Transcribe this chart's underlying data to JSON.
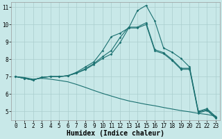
{
  "xlabel": "Humidex (Indice chaleur)",
  "bg_color": "#c8e8e8",
  "line_color": "#1a7070",
  "grid_color": "#aacece",
  "xlim_min": -0.5,
  "xlim_max": 23.5,
  "ylim_min": 4.5,
  "ylim_max": 11.3,
  "yticks": [
    5,
    6,
    7,
    8,
    9,
    10,
    11
  ],
  "xticks": [
    0,
    1,
    2,
    3,
    4,
    5,
    6,
    7,
    8,
    9,
    10,
    11,
    12,
    13,
    14,
    15,
    16,
    17,
    18,
    19,
    20,
    21,
    22,
    23
  ],
  "curve_peak": [
    7.0,
    6.9,
    6.8,
    6.95,
    7.0,
    7.0,
    7.05,
    7.25,
    7.55,
    7.85,
    8.5,
    9.3,
    9.5,
    9.8,
    10.8,
    11.1,
    10.2,
    8.65,
    8.4,
    8.05,
    7.55,
    5.0,
    5.15,
    4.7
  ],
  "curve_mid1": [
    7.0,
    6.9,
    6.8,
    6.95,
    7.0,
    7.0,
    7.05,
    7.2,
    7.45,
    7.75,
    8.15,
    8.5,
    9.25,
    9.85,
    9.85,
    10.1,
    8.55,
    8.38,
    7.98,
    7.48,
    7.48,
    4.95,
    5.1,
    4.65
  ],
  "curve_mid2": [
    7.0,
    6.9,
    6.8,
    6.95,
    7.0,
    7.0,
    7.05,
    7.2,
    7.4,
    7.7,
    8.05,
    8.3,
    8.95,
    9.8,
    9.8,
    10.0,
    8.48,
    8.32,
    7.92,
    7.42,
    7.42,
    4.9,
    5.05,
    4.6
  ],
  "curve_low": [
    7.0,
    6.95,
    6.85,
    6.9,
    6.85,
    6.78,
    6.7,
    6.55,
    6.38,
    6.2,
    6.03,
    5.88,
    5.73,
    5.6,
    5.5,
    5.4,
    5.32,
    5.22,
    5.13,
    5.04,
    4.97,
    4.88,
    4.82,
    4.72
  ],
  "tick_fontsize": 5.5,
  "xlabel_fontsize": 7,
  "lw": 0.8,
  "ms": 1.8
}
